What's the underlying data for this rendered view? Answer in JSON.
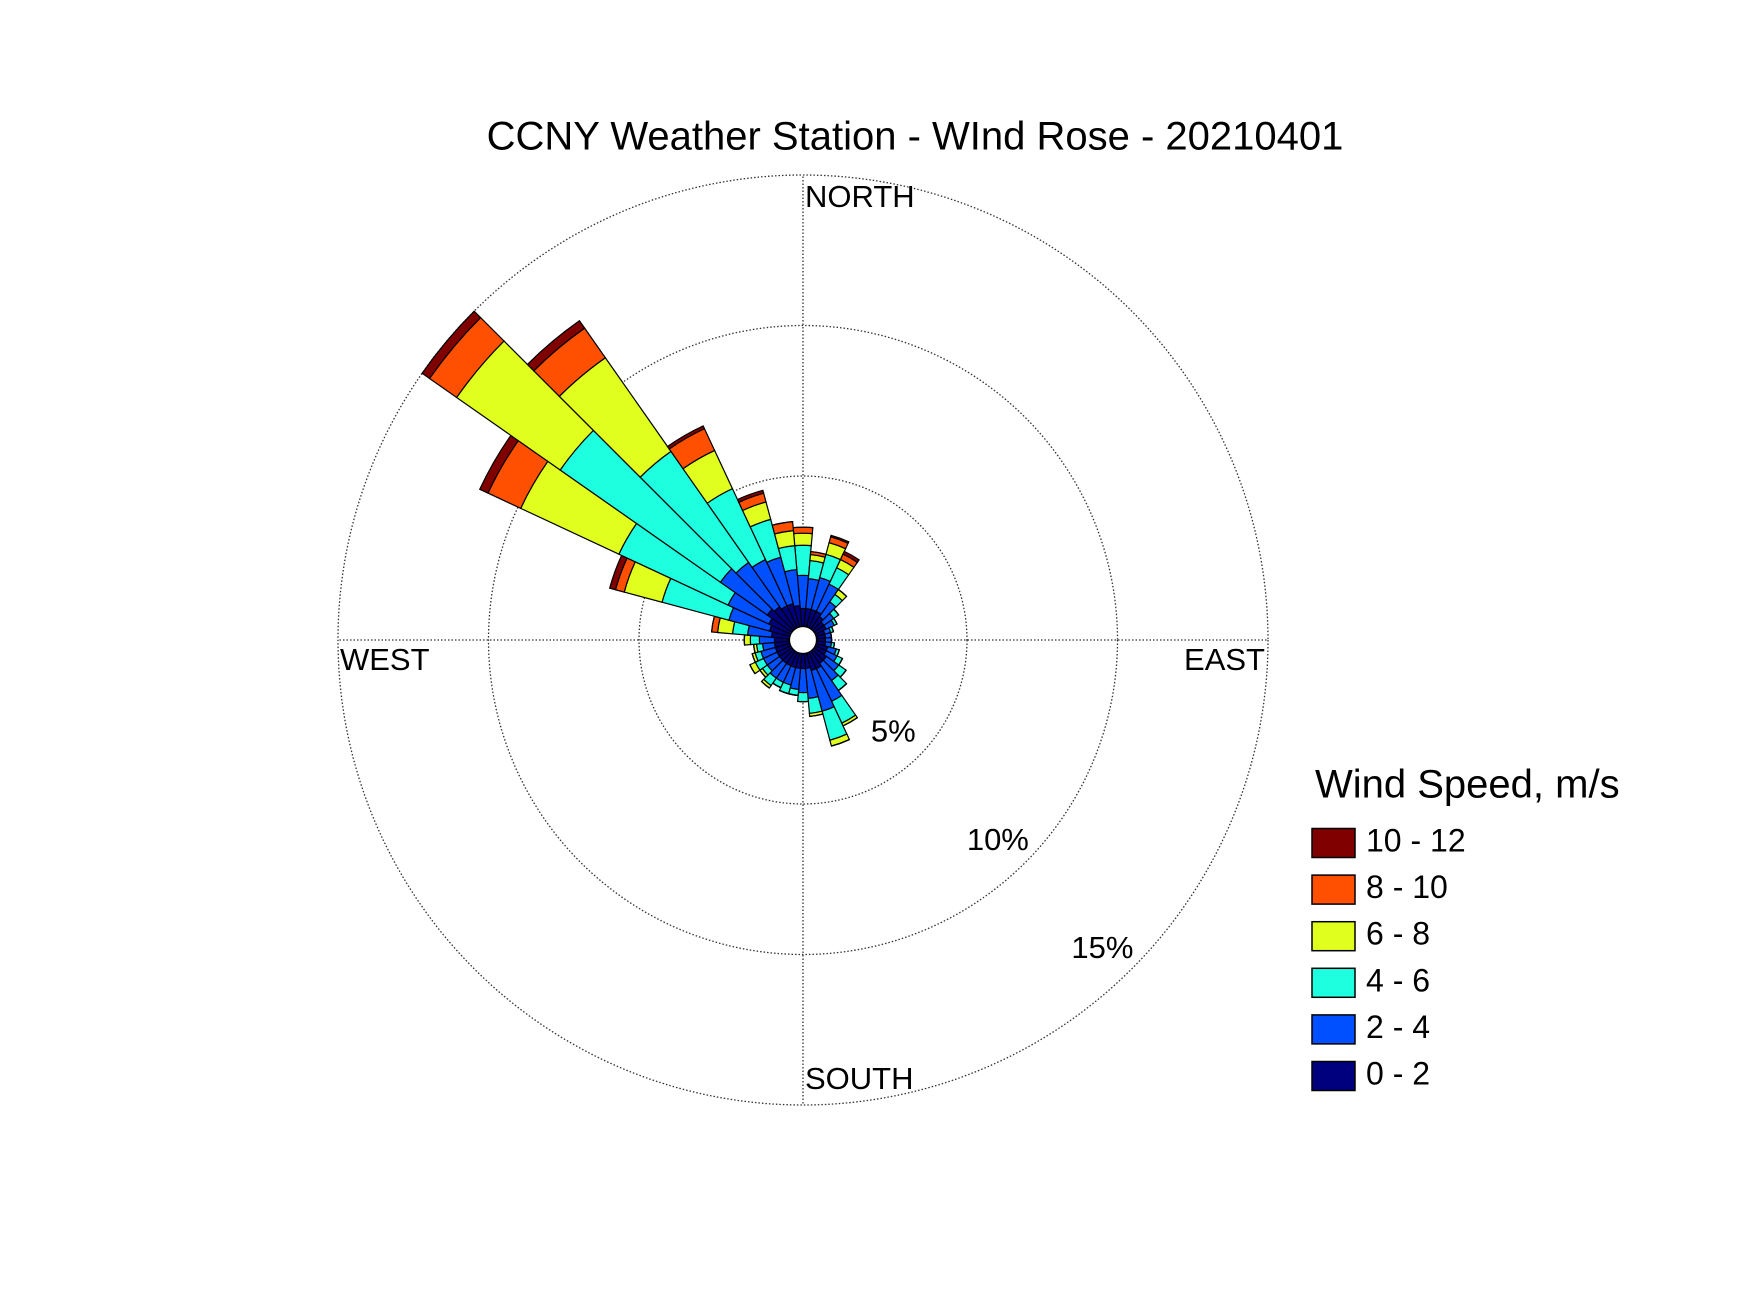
{
  "chart_data": {
    "type": "windrose",
    "title": "CCNY Weather Station - WInd Rose - 20210401",
    "legend_title": "Wind Speed, m/s",
    "x": [
      0,
      10,
      20,
      30,
      40,
      50,
      60,
      70,
      80,
      90,
      100,
      110,
      120,
      130,
      140,
      150,
      160,
      170,
      180,
      190,
      200,
      210,
      220,
      230,
      240,
      250,
      260,
      270,
      280,
      290,
      300,
      310,
      320,
      330,
      340,
      350
    ],
    "xlim": [
      0,
      360
    ],
    "xticks": [
      {
        "value": 0,
        "label": "NORTH"
      },
      {
        "value": 90,
        "label": "EAST"
      },
      {
        "value": 180,
        "label": "SOUTH"
      },
      {
        "value": 270,
        "label": "WEST"
      }
    ],
    "ylim": [
      0,
      15
    ],
    "yticks": [
      {
        "value": 5,
        "label": "5%"
      },
      {
        "value": 10,
        "label": "10%"
      },
      {
        "value": 15,
        "label": "15%"
      }
    ],
    "grid": true,
    "legend": "right",
    "series": [
      {
        "name": "0 - 2",
        "color": "#00007f",
        "values": [
          0.6,
          0.6,
          0.6,
          0.6,
          0.5,
          0.4,
          0.4,
          0.3,
          0.3,
          0.3,
          0.3,
          0.4,
          0.4,
          0.5,
          0.5,
          0.6,
          0.6,
          0.5,
          0.5,
          0.5,
          0.5,
          0.5,
          0.5,
          0.5,
          0.5,
          0.5,
          0.5,
          0.5,
          0.6,
          0.7,
          0.8,
          1.0,
          0.9,
          0.8,
          0.8,
          0.7
        ]
      },
      {
        "name": "2 - 4",
        "color": "#0050ff",
        "values": [
          1.1,
          1.0,
          1.1,
          1.0,
          0.6,
          0.4,
          0.3,
          0.2,
          0.2,
          0.2,
          0.2,
          0.3,
          0.4,
          0.5,
          0.7,
          1.2,
          1.4,
          1.0,
          0.8,
          0.7,
          0.6,
          0.6,
          0.6,
          0.5,
          0.5,
          0.5,
          0.4,
          0.5,
          0.8,
          1.4,
          1.5,
          1.9,
          1.8,
          1.7,
          1.6,
          1.2
        ]
      },
      {
        "name": "4 - 6",
        "color": "#1effe0",
        "values": [
          1.0,
          0.6,
          0.8,
          0.6,
          0.3,
          0.2,
          0.1,
          0.1,
          0,
          0,
          0.1,
          0.1,
          0.2,
          0.3,
          0.4,
          0.8,
          1.0,
          0.5,
          0.3,
          0.2,
          0.3,
          0.2,
          0.3,
          0.2,
          0.3,
          0.2,
          0.2,
          0.3,
          0.5,
          2.3,
          4.0,
          6.5,
          4.5,
          2.6,
          1.3,
          0.8
        ]
      },
      {
        "name": "6 - 8",
        "color": "#e0ff1e",
        "values": [
          0.4,
          0.2,
          0.4,
          0.3,
          0.2,
          0,
          0,
          0,
          0,
          0,
          0,
          0,
          0,
          0,
          0,
          0.1,
          0.2,
          0.1,
          0,
          0,
          0,
          0,
          0.1,
          0.1,
          0.2,
          0.1,
          0.1,
          0.2,
          0.5,
          1.3,
          3.6,
          4.2,
          3.8,
          1.4,
          0.6,
          0.5
        ]
      },
      {
        "name": "8 - 10",
        "color": "#ff4f00",
        "values": [
          0.2,
          0.1,
          0.2,
          0.2,
          0,
          0,
          0,
          0,
          0,
          0,
          0,
          0,
          0,
          0,
          0,
          0,
          0,
          0,
          0,
          0,
          0,
          0,
          0,
          0,
          0,
          0,
          0,
          0,
          0.2,
          0.3,
          1.2,
          1.1,
          1.2,
          0.8,
          0.3,
          0.3
        ]
      },
      {
        "name": "10 - 12",
        "color": "#800000",
        "values": [
          0,
          0,
          0.05,
          0.1,
          0,
          0,
          0,
          0,
          0,
          0,
          0,
          0,
          0,
          0,
          0,
          0,
          0,
          0,
          0,
          0,
          0,
          0,
          0,
          0,
          0,
          0,
          0,
          0,
          0,
          0.2,
          0.3,
          0.3,
          0.3,
          0.1,
          0.1,
          0
        ]
      }
    ]
  }
}
